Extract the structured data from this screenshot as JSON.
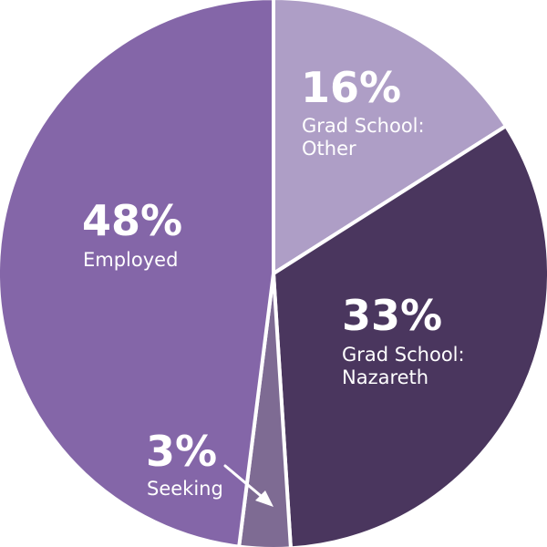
{
  "chart_data": {
    "type": "pie",
    "title": "",
    "legend": "none",
    "slices": [
      {
        "label_lines": [
          "Grad School:",
          "Other"
        ],
        "value": 16,
        "value_label": "16%",
        "color": "#ae9ec6"
      },
      {
        "label_lines": [
          "Grad School:",
          "Nazareth"
        ],
        "value": 33,
        "value_label": "33%",
        "color": "#4a365e"
      },
      {
        "label_lines": [
          "Seeking"
        ],
        "value": 3,
        "value_label": "3%",
        "color": "#7e6b93"
      },
      {
        "label_lines": [
          "Employed"
        ],
        "value": 48,
        "value_label": "48%",
        "color": "#8466a8"
      }
    ]
  }
}
